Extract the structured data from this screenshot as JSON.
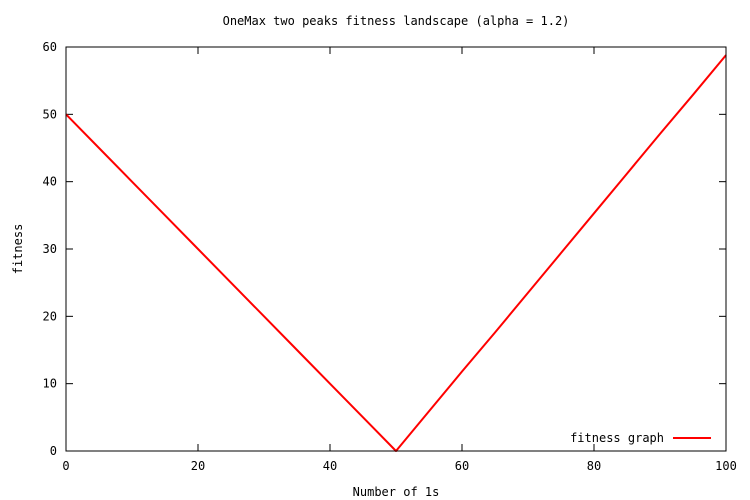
{
  "chart_data": {
    "type": "line",
    "title": "OneMax two peaks fitness landscape (alpha = 1.2)",
    "xlabel": "Number of 1s",
    "ylabel": "fitness",
    "xlim": [
      0,
      100
    ],
    "ylim": [
      0,
      60
    ],
    "xticks": [
      0,
      20,
      40,
      60,
      80,
      100
    ],
    "yticks": [
      0,
      10,
      20,
      30,
      40,
      50,
      60
    ],
    "grid": false,
    "legend_position": "bottom-right",
    "series": [
      {
        "name": "fitness graph",
        "color": "#ff0000",
        "x": [
          0,
          5,
          10,
          15,
          20,
          25,
          30,
          35,
          40,
          45,
          50,
          55,
          60,
          65,
          70,
          75,
          80,
          85,
          90,
          95,
          100
        ],
        "y": [
          50,
          45,
          40,
          35,
          30,
          25,
          20,
          15,
          10,
          5,
          0,
          5.9,
          11.8,
          17.6,
          23.5,
          29.4,
          35.3,
          41.2,
          47.1,
          52.9,
          58.8
        ]
      }
    ]
  }
}
